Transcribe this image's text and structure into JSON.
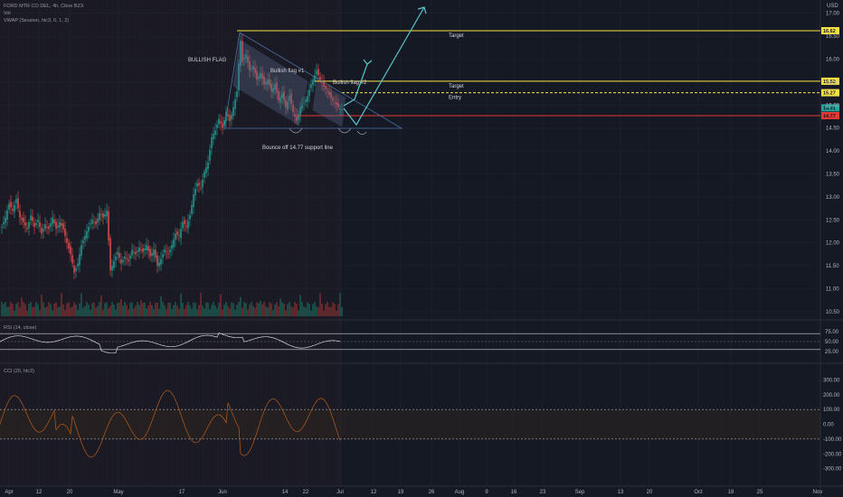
{
  "header": {
    "symbol_line": "FORD MTR CO DEL, 4h, Cboe BZX",
    "vol_line": "Vol",
    "vwap_line": "VWAP (Session, hlc3, 0, 1, 2)",
    "currency": "USD"
  },
  "colors": {
    "background": "#151924",
    "up": "#26a69a",
    "down": "#ef5350",
    "target": "#f5e146",
    "stop": "#e53935",
    "pattern": "#4a6fa5",
    "arrow": "#5bc5c8",
    "rsi": "#d1d4dc",
    "cci": "#b85c1c"
  },
  "chart_data": [
    {
      "type": "candlestick",
      "title": "FORD MTR CO DEL, 4h, Cboe BZX",
      "ylim": [
        10.4,
        17.2
      ],
      "yticks": [
        "17.00",
        "16.50",
        "16.00",
        "15.50",
        "15.00",
        "14.50",
        "14.00",
        "13.50",
        "13.00",
        "12.50",
        "12.00",
        "11.50",
        "11.00",
        "10.50"
      ],
      "xticks": [
        "Apr",
        "12",
        "20",
        "May",
        "17",
        "Jun",
        "14",
        "22",
        "Jul",
        "12",
        "19",
        "26",
        "Aug",
        "9",
        "16",
        "23",
        "Sep",
        "13",
        "20",
        "Oct",
        "18",
        "25",
        "Nov"
      ],
      "price_path": [
        [
          0,
          12.35
        ],
        [
          4,
          12.55
        ],
        [
          8,
          12.85
        ],
        [
          12,
          12.7
        ],
        [
          16,
          12.95
        ],
        [
          20,
          12.55
        ],
        [
          24,
          12.45
        ],
        [
          28,
          12.3
        ],
        [
          32,
          12.6
        ],
        [
          36,
          12.35
        ],
        [
          40,
          12.5
        ],
        [
          44,
          12.2
        ],
        [
          48,
          12.4
        ],
        [
          52,
          12.3
        ],
        [
          56,
          12.55
        ],
        [
          60,
          12.3
        ],
        [
          64,
          12.45
        ],
        [
          68,
          12.3
        ],
        [
          72,
          12.0
        ],
        [
          76,
          11.75
        ],
        [
          80,
          11.35
        ],
        [
          84,
          11.55
        ],
        [
          88,
          11.95
        ],
        [
          92,
          12.15
        ],
        [
          96,
          12.35
        ],
        [
          100,
          12.5
        ],
        [
          104,
          12.4
        ],
        [
          108,
          12.65
        ],
        [
          112,
          12.55
        ],
        [
          116,
          12.7
        ],
        [
          120,
          11.4
        ],
        [
          124,
          11.6
        ],
        [
          128,
          11.8
        ],
        [
          132,
          11.55
        ],
        [
          136,
          11.7
        ],
        [
          140,
          11.6
        ],
        [
          144,
          11.85
        ],
        [
          148,
          11.75
        ],
        [
          152,
          11.9
        ],
        [
          156,
          11.8
        ],
        [
          160,
          11.95
        ],
        [
          164,
          11.7
        ],
        [
          168,
          11.85
        ],
        [
          172,
          11.5
        ],
        [
          176,
          11.65
        ],
        [
          180,
          11.85
        ],
        [
          184,
          11.75
        ],
        [
          188,
          11.95
        ],
        [
          192,
          12.2
        ],
        [
          196,
          12.15
        ],
        [
          200,
          12.45
        ],
        [
          204,
          12.35
        ],
        [
          208,
          12.6
        ],
        [
          212,
          13.05
        ],
        [
          216,
          13.3
        ],
        [
          220,
          13.2
        ],
        [
          224,
          13.55
        ],
        [
          228,
          13.75
        ],
        [
          232,
          14.3
        ],
        [
          236,
          14.45
        ],
        [
          240,
          14.7
        ],
        [
          244,
          14.5
        ],
        [
          248,
          14.85
        ],
        [
          252,
          14.65
        ],
        [
          256,
          14.95
        ],
        [
          260,
          15.3
        ],
        [
          262,
          15.9
        ],
        [
          264,
          16.4
        ],
        [
          266,
          15.95
        ],
        [
          270,
          16.1
        ],
        [
          274,
          15.75
        ],
        [
          278,
          15.85
        ],
        [
          282,
          15.55
        ],
        [
          286,
          15.7
        ],
        [
          290,
          15.45
        ],
        [
          294,
          15.55
        ],
        [
          298,
          15.3
        ],
        [
          302,
          15.45
        ],
        [
          306,
          15.1
        ],
        [
          310,
          15.25
        ],
        [
          314,
          14.95
        ],
        [
          318,
          15.2
        ],
        [
          322,
          14.85
        ],
        [
          326,
          14.65
        ],
        [
          330,
          14.95
        ],
        [
          334,
          15.05
        ],
        [
          338,
          15.2
        ],
        [
          342,
          15.45
        ],
        [
          346,
          15.65
        ],
        [
          348,
          15.75
        ],
        [
          352,
          15.55
        ],
        [
          356,
          15.4
        ],
        [
          360,
          15.3
        ],
        [
          364,
          15.15
        ],
        [
          368,
          15.05
        ],
        [
          372,
          14.95
        ],
        [
          376,
          14.9
        ]
      ],
      "levels": [
        {
          "name": "target_high",
          "label": "Target",
          "value": 16.62,
          "tag": "16.62"
        },
        {
          "name": "target_low",
          "label": "Target",
          "value": 15.52,
          "tag": "15.52"
        },
        {
          "name": "entry",
          "label": "Entry",
          "value": 15.27,
          "tag": "15.27"
        },
        {
          "name": "support",
          "label": "",
          "value": 14.77,
          "tag": "14.77"
        }
      ],
      "last_price": "14.91",
      "annotations": [
        "BULLISH FLAG",
        "Bullish flag #1",
        "Bullish flag #2",
        "Bounce off 14.77 support line"
      ]
    },
    {
      "type": "line",
      "title": "RSI (14, close)",
      "ylim": [
        0,
        100
      ],
      "yticks": [
        "75.00",
        "50.00",
        "25.00"
      ],
      "bands": [
        70,
        50,
        30
      ]
    },
    {
      "type": "line",
      "title": "CCI (20, hlc3)",
      "ylim": [
        -400,
        400
      ],
      "yticks": [
        "300.00",
        "200.00",
        "100.00",
        "0.00",
        "-100.00",
        "-200.00",
        "-300.00"
      ],
      "bands": [
        100,
        -100
      ]
    }
  ]
}
